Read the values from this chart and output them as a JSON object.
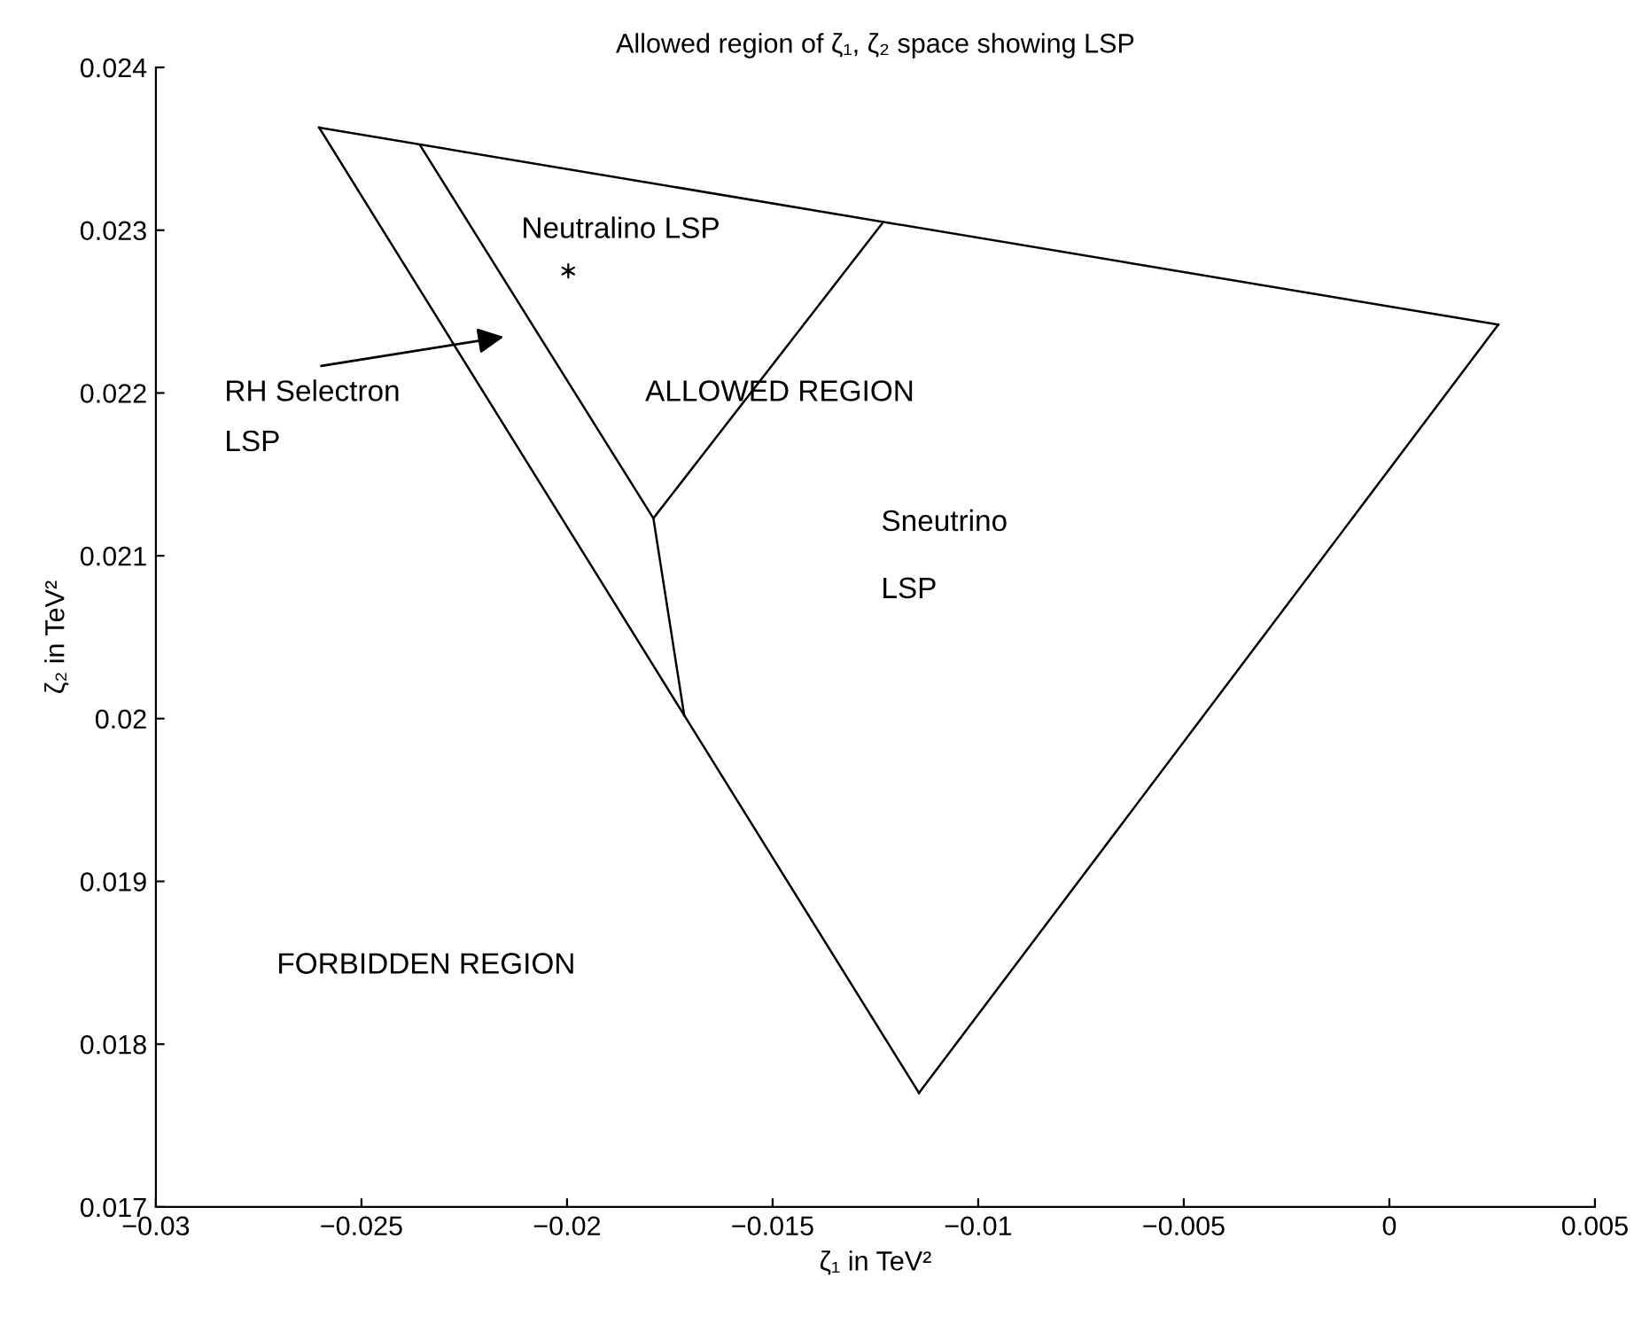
{
  "chart_data": {
    "type": "line",
    "title": "Allowed region of ζ₁, ζ₂ space showing LSP",
    "xlabel": "ζ₁ in TeV²",
    "ylabel": "ζ₂ in TeV²",
    "series": [
      {
        "color": "#000000",
        "x": [
          -0.02603,
          0.00265
        ],
        "values": [
          0.02363,
          0.02242
        ]
      },
      {
        "color": "#000000",
        "x": [
          -0.01144,
          0.00265
        ],
        "values": [
          0.0177,
          0.02242
        ]
      },
      {
        "color": "#000000",
        "x": [
          -0.02603,
          -0.01715,
          -0.01144
        ],
        "values": [
          0.02363,
          0.02002,
          0.0177
        ]
      },
      {
        "color": "#000000",
        "x": [
          -0.02357,
          -0.0179,
          -0.01234
        ],
        "values": [
          0.02352,
          0.02123,
          0.02304
        ]
      },
      {
        "color": "#000000",
        "x": [
          -0.0179,
          -0.01715
        ],
        "values": [
          0.02123,
          0.02002
        ]
      },
      {
        "type": "scatter",
        "marker": "cross",
        "color": "#000000",
        "x": [
          -0.01997
        ],
        "values": [
          0.02275
        ]
      }
    ],
    "marker": "none",
    "line_style": "solid",
    "xlim": [
      -0.03,
      0.005
    ],
    "xticks": [
      {
        "value": -0.03,
        "label": "−0.03"
      },
      {
        "value": -0.025,
        "label": "−0.025"
      },
      {
        "value": -0.02,
        "label": "−0.02"
      },
      {
        "value": -0.015,
        "label": "−0.015"
      },
      {
        "value": -0.01,
        "label": "−0.01"
      },
      {
        "value": -0.005,
        "label": "−0.005"
      },
      0,
      0.005
    ],
    "ylim": [
      0.017,
      0.024
    ],
    "yticks": [
      0.017,
      0.018,
      0.019,
      0.02,
      0.021,
      0.022,
      0.023,
      0.024
    ],
    "grid": false,
    "annotations": [
      "Neutralino LSP",
      "RH Selectron",
      "LSP",
      "ALLOWED REGION",
      "Sneutrino",
      "LSP",
      "FORBIDDEN REGION"
    ]
  }
}
